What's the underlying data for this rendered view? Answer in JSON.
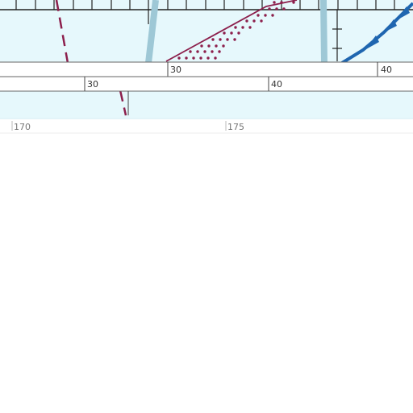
{
  "map": {
    "colors": {
      "sea": "#e6f8fc",
      "band_fill": "#ffffff",
      "band_line": "#666666",
      "airway": "#9ec8d6",
      "boundary": "#8c1f4c",
      "jet_route": "#1f66b0",
      "frame": "#222222",
      "lower_tick": "#bbbbbb"
    },
    "band_upper": {
      "labels": [
        "30",
        "40"
      ]
    },
    "band_lower": {
      "labels": [
        "30",
        "40"
      ]
    },
    "longitude_labels": [
      "170",
      "175"
    ]
  }
}
